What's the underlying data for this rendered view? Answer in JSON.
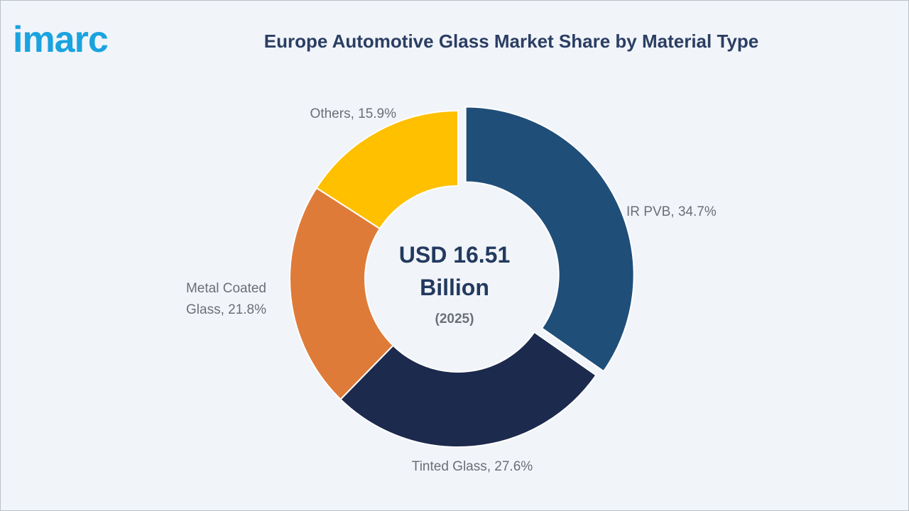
{
  "brand": {
    "logo_text": "imarc",
    "logo_color": "#1aa3df"
  },
  "chart_data": {
    "type": "pie",
    "title": "Europe Automotive Glass Market Share by Material Type",
    "unit": "%",
    "center_value": "USD 16.51",
    "center_value_line2": "Billion",
    "center_sub": "(2025)",
    "slices": [
      {
        "name": "IR PVB",
        "value": 34.7,
        "label": "IR PVB, 34.7%",
        "color": "#1f4e79",
        "exploded": true
      },
      {
        "name": "Tinted Glass",
        "value": 27.6,
        "label": "Tinted Glass, 27.6%",
        "color": "#1c2a4d",
        "exploded": false
      },
      {
        "name": "Metal Coated Glass",
        "value": 21.8,
        "label_lines": [
          "Metal Coated",
          "Glass, 21.8%"
        ],
        "color": "#df7b39",
        "exploded": false
      },
      {
        "name": "Others",
        "value": 15.9,
        "label": "Others, 15.9%",
        "color": "#ffc000",
        "exploded": false
      }
    ]
  }
}
